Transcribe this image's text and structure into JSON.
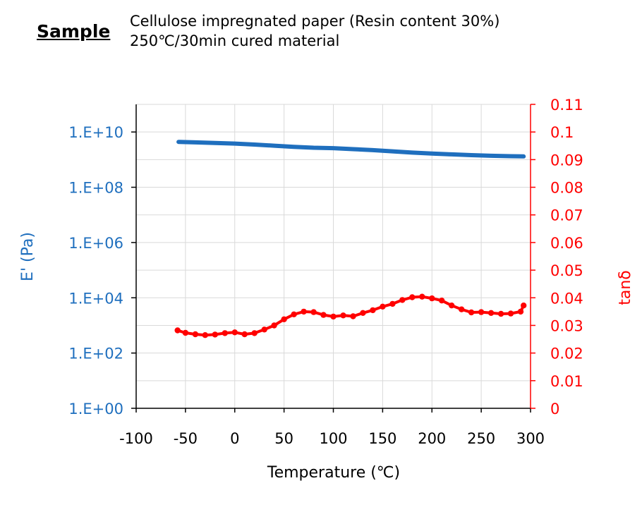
{
  "header": {
    "sample_label": "Sample",
    "line1": "Cellulose impregnated paper (Resin content 30%)",
    "line2": "250℃/30min cured material"
  },
  "colors": {
    "left_axis": "#1f6fbe",
    "right_axis": "#ff0000",
    "modulus_series": "#1f6fbe",
    "tan_series": "#ff0000",
    "grid": "#d9d9d9"
  },
  "chart_data": {
    "type": "line",
    "xlabel": "Temperature (℃)",
    "ylabel": "E' (Pa)",
    "y2label": "tanδ",
    "xlim": [
      -100,
      300
    ],
    "x_ticks": [
      -100,
      -50,
      0,
      50,
      100,
      150,
      200,
      250,
      300
    ],
    "x_tick_labels": [
      "-100",
      "-50",
      "0",
      "50",
      "100",
      "150",
      "200",
      "250",
      "300"
    ],
    "ylim_log10": [
      0,
      11
    ],
    "y_scale": "log",
    "y_ticks_log10": [
      0,
      2,
      4,
      6,
      8,
      10
    ],
    "y_tick_labels": [
      "1.E+00",
      "1.E+02",
      "1.E+04",
      "1.E+06",
      "1.E+08",
      "1.E+10"
    ],
    "y2lim": [
      0,
      0.11
    ],
    "y2_ticks": [
      0,
      0.01,
      0.02,
      0.03,
      0.04,
      0.05,
      0.06,
      0.07,
      0.08,
      0.09,
      0.1,
      0.11
    ],
    "y2_tick_labels": [
      "0",
      "0.01",
      "0.02",
      "0.03",
      "0.04",
      "0.05",
      "0.06",
      "0.07",
      "0.08",
      "0.09",
      "0.1",
      "0.11"
    ],
    "grid": true,
    "series": [
      {
        "axis": "left",
        "x": [
          -57,
          -40,
          -20,
          0,
          20,
          40,
          60,
          80,
          100,
          120,
          140,
          160,
          180,
          200,
          220,
          240,
          260,
          280,
          293
        ],
        "y": [
          4400000000.0,
          4200000000.0,
          4000000000.0,
          3800000000.0,
          3500000000.0,
          3200000000.0,
          2900000000.0,
          2700000000.0,
          2600000000.0,
          2400000000.0,
          2200000000.0,
          2000000000.0,
          1800000000.0,
          1650000000.0,
          1550000000.0,
          1450000000.0,
          1380000000.0,
          1330000000.0,
          1310000000.0
        ]
      },
      {
        "axis": "right",
        "x": [
          -58,
          -50,
          -40,
          -30,
          -20,
          -10,
          0,
          10,
          20,
          30,
          40,
          50,
          60,
          70,
          80,
          90,
          100,
          110,
          120,
          130,
          140,
          150,
          160,
          170,
          180,
          190,
          200,
          210,
          220,
          230,
          240,
          250,
          260,
          270,
          280,
          290,
          293
        ],
        "y": [
          0.0282,
          0.0273,
          0.0268,
          0.0265,
          0.0267,
          0.0272,
          0.0275,
          0.0268,
          0.0272,
          0.0285,
          0.03,
          0.0322,
          0.034,
          0.035,
          0.0348,
          0.0338,
          0.0332,
          0.0336,
          0.0333,
          0.0345,
          0.0355,
          0.0368,
          0.0378,
          0.0392,
          0.0402,
          0.0404,
          0.0398,
          0.039,
          0.0372,
          0.0358,
          0.0347,
          0.0348,
          0.0345,
          0.0342,
          0.0343,
          0.035,
          0.0372
        ]
      }
    ]
  }
}
